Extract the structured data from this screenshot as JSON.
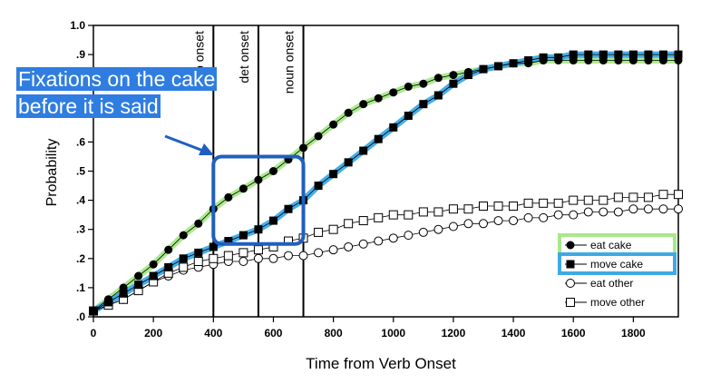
{
  "annotation": {
    "callout_text": "Fixations on the cake before it is said",
    "box_color": "#1f5fbf",
    "arrow_color": "#1f5fbf",
    "callout_bg": "#2f7de1"
  },
  "chart_data": {
    "type": "line",
    "title": "",
    "xlabel": "Time from Verb Onset",
    "ylabel": "Probability",
    "xlim": [
      0,
      1950
    ],
    "ylim": [
      0,
      1.0
    ],
    "xticks": [
      "0",
      "200",
      "400",
      "600",
      "800",
      "1000",
      "1200",
      "1400",
      "1600",
      "1800"
    ],
    "yticks": [
      ".0",
      ".1",
      ".2",
      ".3",
      ".4",
      ".5",
      ".6",
      ".7",
      ".8",
      ".9",
      "1.0"
    ],
    "x": [
      0,
      50,
      100,
      150,
      200,
      250,
      300,
      350,
      400,
      450,
      500,
      550,
      600,
      650,
      700,
      750,
      800,
      850,
      900,
      950,
      1000,
      1050,
      1100,
      1150,
      1200,
      1250,
      1300,
      1350,
      1400,
      1450,
      1500,
      1550,
      1600,
      1650,
      1700,
      1750,
      1800,
      1850,
      1900,
      1950
    ],
    "series": [
      {
        "name": "eat cake",
        "marker": "filled-circle",
        "values": [
          0.02,
          0.06,
          0.1,
          0.14,
          0.18,
          0.23,
          0.28,
          0.32,
          0.37,
          0.41,
          0.44,
          0.47,
          0.5,
          0.54,
          0.58,
          0.62,
          0.66,
          0.7,
          0.73,
          0.75,
          0.77,
          0.79,
          0.8,
          0.82,
          0.83,
          0.84,
          0.85,
          0.86,
          0.87,
          0.87,
          0.88,
          0.88,
          0.88,
          0.88,
          0.88,
          0.88,
          0.88,
          0.88,
          0.88,
          0.88
        ]
      },
      {
        "name": "move cake",
        "marker": "filled-square",
        "values": [
          0.02,
          0.05,
          0.08,
          0.11,
          0.14,
          0.17,
          0.2,
          0.22,
          0.24,
          0.26,
          0.28,
          0.3,
          0.33,
          0.37,
          0.4,
          0.45,
          0.49,
          0.53,
          0.57,
          0.61,
          0.65,
          0.69,
          0.73,
          0.76,
          0.8,
          0.83,
          0.85,
          0.86,
          0.87,
          0.88,
          0.89,
          0.89,
          0.9,
          0.9,
          0.9,
          0.9,
          0.9,
          0.9,
          0.9,
          0.9
        ]
      },
      {
        "name": "eat other",
        "marker": "open-circle",
        "values": [
          0.02,
          0.04,
          0.06,
          0.09,
          0.12,
          0.14,
          0.16,
          0.17,
          0.18,
          0.19,
          0.19,
          0.2,
          0.2,
          0.21,
          0.21,
          0.22,
          0.23,
          0.24,
          0.25,
          0.26,
          0.27,
          0.28,
          0.29,
          0.3,
          0.31,
          0.32,
          0.32,
          0.33,
          0.33,
          0.34,
          0.34,
          0.35,
          0.35,
          0.36,
          0.36,
          0.36,
          0.37,
          0.37,
          0.37,
          0.37
        ]
      },
      {
        "name": "move other",
        "marker": "open-square",
        "values": [
          0.02,
          0.04,
          0.06,
          0.09,
          0.12,
          0.15,
          0.17,
          0.19,
          0.2,
          0.21,
          0.22,
          0.23,
          0.24,
          0.26,
          0.27,
          0.29,
          0.3,
          0.32,
          0.33,
          0.34,
          0.35,
          0.35,
          0.36,
          0.36,
          0.37,
          0.37,
          0.38,
          0.38,
          0.38,
          0.39,
          0.39,
          0.39,
          0.4,
          0.4,
          0.4,
          0.41,
          0.41,
          0.41,
          0.42,
          0.42
        ]
      }
    ],
    "highlight_curves": [
      {
        "target_series": "eat cake",
        "color": "#a8e889",
        "values": [
          0.02,
          0.06,
          0.1,
          0.14,
          0.18,
          0.23,
          0.28,
          0.32,
          0.37,
          0.41,
          0.44,
          0.47,
          0.5,
          0.54,
          0.58,
          0.62,
          0.66,
          0.7,
          0.73,
          0.75,
          0.77,
          0.79,
          0.8,
          0.82,
          0.83,
          0.84,
          0.85,
          0.86,
          0.87,
          0.87,
          0.88,
          0.88,
          0.88,
          0.88,
          0.88,
          0.88,
          0.88,
          0.88,
          0.88,
          0.88
        ]
      },
      {
        "target_series": "move cake",
        "color": "#3fa9e6",
        "values": [
          0.02,
          0.05,
          0.08,
          0.11,
          0.14,
          0.17,
          0.2,
          0.22,
          0.24,
          0.26,
          0.28,
          0.3,
          0.33,
          0.37,
          0.4,
          0.45,
          0.49,
          0.53,
          0.57,
          0.61,
          0.65,
          0.69,
          0.73,
          0.76,
          0.8,
          0.83,
          0.85,
          0.86,
          0.87,
          0.88,
          0.89,
          0.89,
          0.9,
          0.9,
          0.9,
          0.9,
          0.9,
          0.9,
          0.9,
          0.9
        ]
      }
    ],
    "vertical_lines": [
      {
        "x": 400,
        "label": "verb onset"
      },
      {
        "x": 550,
        "label": "det onset"
      },
      {
        "x": 700,
        "label": "noun onset"
      }
    ],
    "highlight_region": {
      "x": [
        400,
        700
      ],
      "y": [
        0.25,
        0.55
      ]
    },
    "legend": {
      "position": "bottom-right",
      "entries": [
        "eat cake",
        "move cake",
        "eat other",
        "move other"
      ],
      "highlighted": [
        {
          "entry": "eat cake",
          "color": "#a8e889"
        },
        {
          "entry": "move cake",
          "color": "#3fa9e6"
        }
      ]
    },
    "grid": false
  }
}
